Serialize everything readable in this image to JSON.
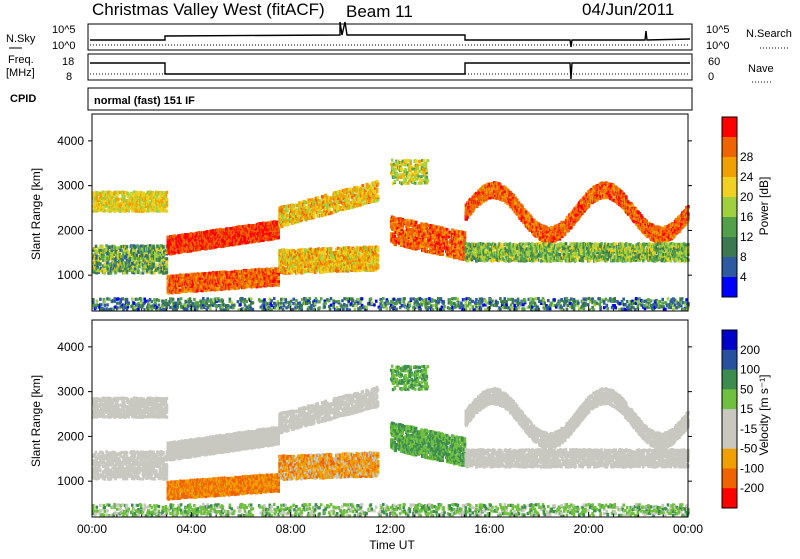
{
  "header": {
    "title": "Christmas Valley West (fitACF)",
    "beam": "Beam 11",
    "date": "04/Jun/2011"
  },
  "nsky_panel": {
    "left_label": "N.Sky",
    "right_label": "N.Search",
    "left_ticks": [
      "10^5",
      "10^0"
    ],
    "right_ticks": [
      "10^5",
      "10^0"
    ]
  },
  "freq_panel": {
    "left_label_1": "Freq.",
    "left_label_2": "[MHz]",
    "right_label": "Nave",
    "left_ticks": [
      "18",
      "8"
    ],
    "right_ticks": [
      "60",
      "0"
    ]
  },
  "cpid": {
    "label": "CPID",
    "value": "normal (fast) 151 IF"
  },
  "colors": {
    "power": [
      "#0000ff",
      "#2d5aa0",
      "#3c7850",
      "#52a04a",
      "#a0d040",
      "#f0d020",
      "#f0a000",
      "#f06400",
      "#ff0000"
    ],
    "velocity": [
      "#ff0000",
      "#f06400",
      "#f0a000",
      "#c8c8c0",
      "#c8c8c0",
      "#70c040",
      "#3c8c50",
      "#2850a0",
      "#0000c8"
    ]
  },
  "chart_data": [
    {
      "type": "heatmap",
      "name": "power",
      "ylabel": "Slant Range [km]",
      "ylim": [
        200,
        4600
      ],
      "yticks": [
        1000,
        2000,
        3000,
        4000
      ],
      "xlim": [
        0,
        24
      ],
      "colorbar_label": "Power [dB]",
      "colorbar_ticks": [
        "4",
        "8",
        "12",
        "16",
        "20",
        "24",
        "28"
      ]
    },
    {
      "type": "heatmap",
      "name": "velocity",
      "ylabel": "Slant Range [km]",
      "ylim": [
        200,
        4600
      ],
      "yticks": [
        1000,
        2000,
        3000,
        4000
      ],
      "xlim": [
        0,
        24
      ],
      "xlabel": "Time UT",
      "xticks": [
        "00:00",
        "04:00",
        "08:00",
        "12:00",
        "16:00",
        "20:00",
        "00:00"
      ],
      "colorbar_label": "Velocity [m s⁻¹]",
      "colorbar_ticks": [
        "200",
        "100",
        "50",
        "15",
        "-15",
        "-50",
        "-100",
        "-200"
      ]
    }
  ]
}
